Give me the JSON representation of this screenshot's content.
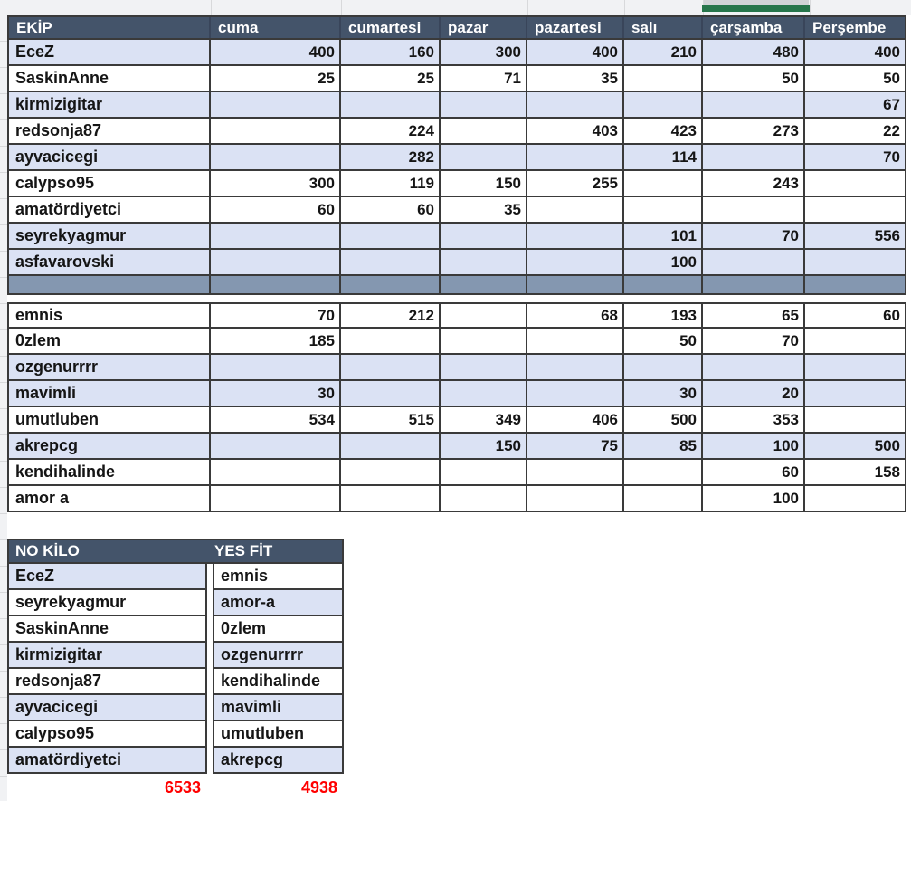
{
  "colors": {
    "header_bg": "#44546a",
    "header_text": "#ffffff",
    "shaded_row": "#dbe2f4",
    "separator_row": "#8497b0",
    "grid_border": "#3a3a3a",
    "totals_text": "#ff0000",
    "selection_green": "#27764b"
  },
  "selection_indicator": {
    "above_column": "çarşamba"
  },
  "table1": {
    "headers": [
      "EKİP",
      "cuma",
      "cumartesi",
      "pazar",
      "pazartesi",
      "salı",
      "çarşamba",
      "Perşembe"
    ],
    "rows": [
      {
        "name": "EceZ",
        "values": [
          "400",
          "160",
          "300",
          "400",
          "210",
          "480",
          "400"
        ],
        "shaded": true
      },
      {
        "name": "SaskinAnne",
        "values": [
          "25",
          "25",
          "71",
          "35",
          "",
          "50",
          "50"
        ],
        "shaded": false
      },
      {
        "name": "kirmizigitar",
        "values": [
          "",
          "",
          "",
          "",
          "",
          "",
          "67"
        ],
        "shaded": true
      },
      {
        "name": "redsonja87",
        "values": [
          "",
          "224",
          "",
          "403",
          "423",
          "273",
          "22"
        ],
        "shaded": false
      },
      {
        "name": "ayvacicegi",
        "values": [
          "",
          "282",
          "",
          "",
          "114",
          "",
          "70"
        ],
        "shaded": true
      },
      {
        "name": "calypso95",
        "values": [
          "300",
          "119",
          "150",
          "255",
          "",
          "243",
          ""
        ],
        "shaded": false
      },
      {
        "name": "amatördiyetci",
        "values": [
          "60",
          "60",
          "35",
          "",
          "",
          "",
          ""
        ],
        "shaded": false
      },
      {
        "name": "seyrekyagmur",
        "values": [
          "",
          "",
          "",
          "",
          "101",
          "70",
          "556"
        ],
        "shaded": true
      },
      {
        "name": "asfavarovski",
        "values": [
          "",
          "",
          "",
          "",
          "100",
          "",
          ""
        ],
        "shaded": true
      },
      {
        "type": "separator"
      },
      {
        "name": "emnis",
        "values": [
          "70",
          "212",
          "",
          "68",
          "193",
          "65",
          "60"
        ],
        "shaded": false
      },
      {
        "name": "0zlem",
        "values": [
          "185",
          "",
          "",
          "",
          "50",
          "70",
          ""
        ],
        "shaded": false
      },
      {
        "name": "ozgenurrrr",
        "values": [
          "",
          "",
          "",
          "",
          "",
          "",
          ""
        ],
        "shaded": true
      },
      {
        "name": "mavimli",
        "values": [
          "30",
          "",
          "",
          "",
          "30",
          "20",
          ""
        ],
        "shaded": true
      },
      {
        "name": "umutluben",
        "values": [
          "534",
          "515",
          "349",
          "406",
          "500",
          "353",
          ""
        ],
        "shaded": false
      },
      {
        "name": "akrepcg",
        "values": [
          "",
          "",
          "150",
          "75",
          "85",
          "100",
          "500"
        ],
        "shaded": true
      },
      {
        "name": "kendihalinde",
        "values": [
          "",
          "",
          "",
          "",
          "",
          "60",
          "158"
        ],
        "shaded": false
      },
      {
        "name": "amor a",
        "values": [
          "",
          "",
          "",
          "",
          "",
          "100",
          ""
        ],
        "shaded": false
      }
    ]
  },
  "table2": {
    "headers": {
      "col1": "NO KİLO",
      "col2": "YES FİT"
    },
    "rows": [
      {
        "no_kilo": "EceZ",
        "no_kilo_shaded": true,
        "yes_fit": "emnis",
        "yes_fit_shaded": false
      },
      {
        "no_kilo": "seyrekyagmur",
        "no_kilo_shaded": false,
        "yes_fit": "amor-a",
        "yes_fit_shaded": true
      },
      {
        "no_kilo": "SaskinAnne",
        "no_kilo_shaded": false,
        "yes_fit": "0zlem",
        "yes_fit_shaded": false
      },
      {
        "no_kilo": "kirmizigitar",
        "no_kilo_shaded": true,
        "yes_fit": "ozgenurrrr",
        "yes_fit_shaded": true
      },
      {
        "no_kilo": "redsonja87",
        "no_kilo_shaded": false,
        "yes_fit": "kendihalinde",
        "yes_fit_shaded": false
      },
      {
        "no_kilo": "ayvacicegi",
        "no_kilo_shaded": true,
        "yes_fit": "mavimli",
        "yes_fit_shaded": true
      },
      {
        "no_kilo": "calypso95",
        "no_kilo_shaded": false,
        "yes_fit": "umutluben",
        "yes_fit_shaded": false
      },
      {
        "no_kilo": "amatördiyetci",
        "no_kilo_shaded": true,
        "yes_fit": "akrepcg",
        "yes_fit_shaded": true
      }
    ],
    "totals": {
      "no_kilo_total": "6533",
      "yes_fit_total": "4938"
    }
  }
}
